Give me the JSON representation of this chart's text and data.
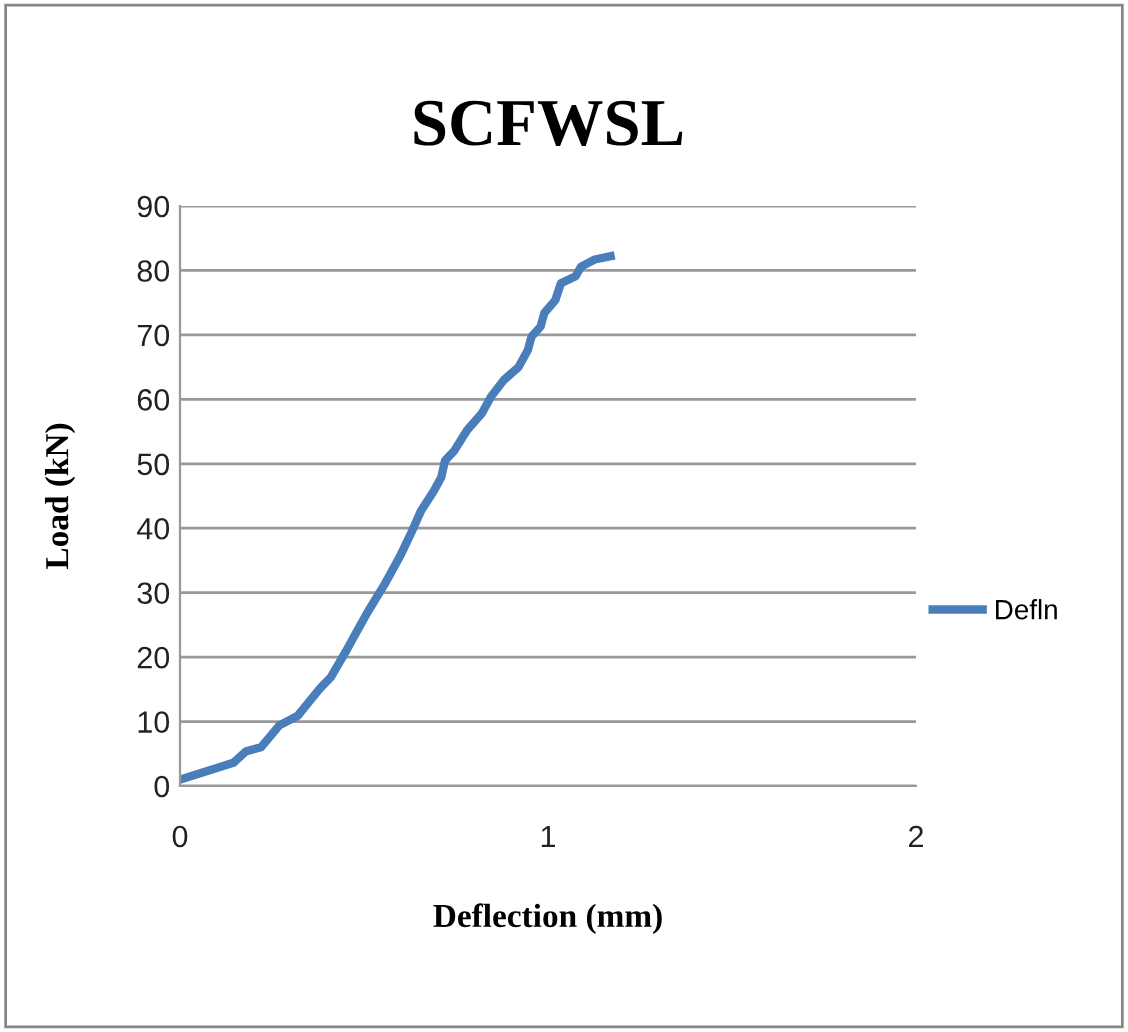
{
  "chart_data": {
    "type": "line",
    "title": "SCFWSL",
    "xlabel": "Deflection (mm)",
    "ylabel": "Load (kN)",
    "xlim": [
      0,
      2
    ],
    "xticks": [
      0,
      1,
      2
    ],
    "ylim": [
      0,
      90
    ],
    "yticks": [
      0,
      10,
      20,
      30,
      40,
      50,
      60,
      70,
      80,
      90
    ],
    "grid": "y",
    "legend": "right",
    "marker": "none",
    "line_style": "solid",
    "series": [
      {
        "name": "Defln",
        "color": "#4a7ebb",
        "x": [
          0,
          0.145,
          0.18,
          0.22,
          0.27,
          0.32,
          0.35,
          0.38,
          0.41,
          0.45,
          0.47,
          0.51,
          0.555,
          0.6,
          0.63,
          0.655,
          0.69,
          0.71,
          0.72,
          0.745,
          0.78,
          0.82,
          0.845,
          0.88,
          0.92,
          0.945,
          0.955,
          0.98,
          0.99,
          1.02,
          1.035,
          1.075,
          1.09,
          1.127,
          1.17
        ],
        "values": [
          1,
          3.6,
          5.4,
          6,
          9.4,
          10.9,
          13,
          15.1,
          16.9,
          20.8,
          22.9,
          27,
          31.2,
          35.9,
          39.5,
          42.7,
          45.8,
          47.9,
          50.5,
          52,
          55.2,
          57.8,
          60.4,
          63,
          65,
          67.6,
          69.7,
          71.3,
          73.4,
          75.4,
          78,
          79.1,
          80.6,
          81.7,
          82.2
        ]
      }
    ]
  }
}
